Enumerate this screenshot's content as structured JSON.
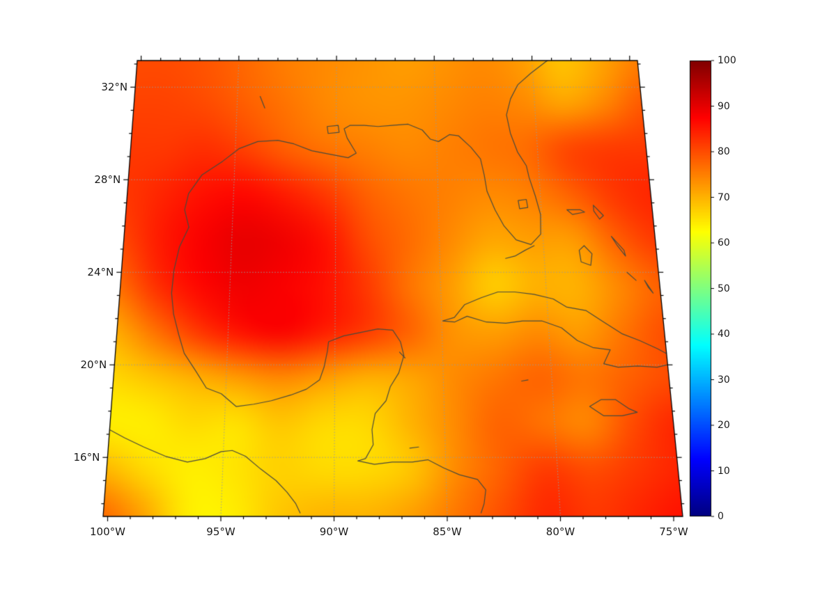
{
  "chart_data": {
    "type": "heatmap",
    "title": "",
    "projection": "conic-like map of Gulf of Mexico / Caribbean region",
    "value_range": [
      0,
      100
    ],
    "lat_ticks": [
      {
        "label": "32°N",
        "value": 32
      },
      {
        "label": "28°N",
        "value": 28
      },
      {
        "label": "24°N",
        "value": 24
      },
      {
        "label": "20°N",
        "value": 20
      },
      {
        "label": "16°N",
        "value": 16
      }
    ],
    "lon_ticks": [
      {
        "label": "100°W",
        "value": -100
      },
      {
        "label": "95°W",
        "value": -95
      },
      {
        "label": "90°W",
        "value": -90
      },
      {
        "label": "85°W",
        "value": -85
      },
      {
        "label": "80°W",
        "value": -80
      },
      {
        "label": "75°W",
        "value": -75
      }
    ],
    "graticule": {
      "lons": [
        -95,
        -90,
        -85,
        -80
      ],
      "lats": [
        16,
        20,
        24,
        28,
        32
      ]
    },
    "colorbar": {
      "min": 0,
      "max": 100,
      "ticks": [
        {
          "label": "100",
          "value": 100
        },
        {
          "label": "90",
          "value": 90
        },
        {
          "label": "80",
          "value": 80
        },
        {
          "label": "70",
          "value": 70
        },
        {
          "label": "60",
          "value": 60
        },
        {
          "label": "50",
          "value": 50
        },
        {
          "label": "40",
          "value": 40
        },
        {
          "label": "30",
          "value": 30
        },
        {
          "label": "20",
          "value": 20
        },
        {
          "label": "10",
          "value": 10
        },
        {
          "label": "0",
          "value": 0
        }
      ]
    },
    "colormap": {
      "name": "jet",
      "stops": [
        [
          0,
          "#000080"
        ],
        [
          0.125,
          "#0000ff"
        ],
        [
          0.375,
          "#00ffff"
        ],
        [
          0.625,
          "#ffff00"
        ],
        [
          0.875,
          "#ff0000"
        ],
        [
          1,
          "#800000"
        ]
      ]
    },
    "grid": {
      "lons": [
        -100.5,
        -98.5,
        -96.5,
        -94.5,
        -92.5,
        -90.5,
        -88.5,
        -86.5,
        -84.5,
        -82.5,
        -80.5,
        -78.5,
        -76.5,
        -74.5
      ],
      "lats": [
        33.3,
        31.3,
        29.3,
        27.4,
        25.4,
        23.4,
        21.4,
        19.4,
        17.5,
        15.5,
        13.5
      ],
      "values": [
        [
          80,
          80,
          79,
          77,
          75,
          74,
          73,
          72,
          73,
          74,
          72,
          68,
          71,
          75
        ],
        [
          81,
          81,
          80,
          78,
          76,
          74,
          73,
          73,
          74,
          75,
          74,
          71,
          74,
          79
        ],
        [
          82,
          82,
          83,
          81,
          78,
          76,
          75,
          74,
          75,
          76,
          77,
          81,
          82,
          82
        ],
        [
          82,
          84,
          86,
          87,
          85,
          82,
          78,
          76,
          75,
          74,
          75,
          78,
          82,
          84
        ],
        [
          80,
          85,
          88,
          90,
          89,
          86,
          80,
          77,
          74,
          71,
          72,
          72,
          78,
          82
        ],
        [
          76,
          83,
          87,
          89,
          88,
          86,
          82,
          76,
          72,
          67,
          70,
          70,
          74,
          78
        ],
        [
          70,
          76,
          82,
          86,
          88,
          85,
          82,
          78,
          73,
          72,
          74,
          72,
          76,
          80
        ],
        [
          66,
          68,
          70,
          72,
          74,
          72,
          70,
          71,
          74,
          76,
          78,
          76,
          78,
          80
        ],
        [
          64,
          64,
          66,
          65,
          68,
          66,
          66,
          70,
          74,
          78,
          76,
          74,
          80,
          84
        ],
        [
          70,
          66,
          64,
          65,
          67,
          66,
          66,
          68,
          74,
          78,
          82,
          80,
          82,
          84
        ],
        [
          78,
          72,
          64,
          64,
          68,
          70,
          70,
          72,
          76,
          80,
          84,
          82,
          84,
          86
        ]
      ]
    },
    "coastlines": [
      {
        "name": "us-gulf-atlantic-coast",
        "points": [
          [
            -97.1,
            25.95
          ],
          [
            -97.35,
            26.7
          ],
          [
            -97.2,
            27.4
          ],
          [
            -96.6,
            28.2
          ],
          [
            -95.6,
            28.8
          ],
          [
            -94.8,
            29.35
          ],
          [
            -93.9,
            29.65
          ],
          [
            -92.9,
            29.7
          ],
          [
            -92.1,
            29.55
          ],
          [
            -91.2,
            29.25
          ],
          [
            -90.3,
            29.1
          ],
          [
            -89.4,
            28.95
          ],
          [
            -89.0,
            29.15
          ],
          [
            -89.45,
            29.8
          ],
          [
            -89.6,
            30.2
          ],
          [
            -89.3,
            30.35
          ],
          [
            -88.6,
            30.35
          ],
          [
            -87.9,
            30.3
          ],
          [
            -87.2,
            30.35
          ],
          [
            -86.4,
            30.4
          ],
          [
            -85.7,
            30.15
          ],
          [
            -85.3,
            29.75
          ],
          [
            -84.9,
            29.65
          ],
          [
            -84.35,
            29.95
          ],
          [
            -83.9,
            29.9
          ],
          [
            -83.3,
            29.4
          ],
          [
            -82.85,
            28.9
          ],
          [
            -82.7,
            28.2
          ],
          [
            -82.6,
            27.5
          ],
          [
            -82.25,
            26.7
          ],
          [
            -81.85,
            26.0
          ],
          [
            -81.3,
            25.4
          ],
          [
            -80.6,
            25.2
          ],
          [
            -80.1,
            25.65
          ],
          [
            -80.05,
            26.5
          ],
          [
            -80.25,
            27.3
          ],
          [
            -80.5,
            28.1
          ],
          [
            -80.6,
            28.6
          ],
          [
            -81.0,
            29.2
          ],
          [
            -81.3,
            30.0
          ],
          [
            -81.45,
            30.8
          ],
          [
            -81.2,
            31.5
          ],
          [
            -80.8,
            32.1
          ],
          [
            -80.1,
            32.6
          ],
          [
            -79.3,
            33.1
          ],
          [
            -78.9,
            33.3
          ]
        ]
      },
      {
        "name": "mexico-gulf-yucatan-coast",
        "points": [
          [
            -97.1,
            25.95
          ],
          [
            -97.5,
            25.1
          ],
          [
            -97.7,
            24.1
          ],
          [
            -97.75,
            23.1
          ],
          [
            -97.6,
            22.2
          ],
          [
            -97.3,
            21.3
          ],
          [
            -97.0,
            20.5
          ],
          [
            -96.4,
            19.7
          ],
          [
            -95.9,
            19.0
          ],
          [
            -95.2,
            18.75
          ],
          [
            -94.5,
            18.2
          ],
          [
            -93.7,
            18.3
          ],
          [
            -92.9,
            18.45
          ],
          [
            -92.0,
            18.7
          ],
          [
            -91.3,
            18.95
          ],
          [
            -90.7,
            19.35
          ],
          [
            -90.5,
            19.9
          ],
          [
            -90.35,
            20.6
          ],
          [
            -90.3,
            21.0
          ],
          [
            -89.6,
            21.25
          ],
          [
            -88.8,
            21.4
          ],
          [
            -88.0,
            21.55
          ],
          [
            -87.3,
            21.5
          ],
          [
            -86.95,
            21.0
          ],
          [
            -86.8,
            20.4
          ],
          [
            -87.05,
            19.65
          ],
          [
            -87.45,
            19.05
          ],
          [
            -87.65,
            18.45
          ],
          [
            -88.15,
            17.9
          ],
          [
            -88.3,
            17.2
          ],
          [
            -88.25,
            16.55
          ],
          [
            -88.6,
            15.95
          ],
          [
            -88.95,
            15.85
          ],
          [
            -88.2,
            15.7
          ],
          [
            -87.4,
            15.8
          ],
          [
            -86.5,
            15.8
          ],
          [
            -85.8,
            15.9
          ],
          [
            -85.1,
            15.55
          ],
          [
            -84.4,
            15.25
          ],
          [
            -83.6,
            15.05
          ],
          [
            -83.25,
            14.6
          ],
          [
            -83.35,
            14.0
          ],
          [
            -83.5,
            13.6
          ]
        ]
      },
      {
        "name": "pacific-coast",
        "points": [
          [
            -100.3,
            17.25
          ],
          [
            -99.5,
            16.85
          ],
          [
            -98.6,
            16.45
          ],
          [
            -97.6,
            16.05
          ],
          [
            -96.6,
            15.8
          ],
          [
            -95.8,
            15.95
          ],
          [
            -95.1,
            16.25
          ],
          [
            -94.6,
            16.3
          ],
          [
            -94.0,
            16.05
          ],
          [
            -93.3,
            15.5
          ],
          [
            -92.6,
            15.0
          ],
          [
            -92.1,
            14.5
          ],
          [
            -91.7,
            14.0
          ],
          [
            -91.5,
            13.6
          ]
        ]
      },
      {
        "name": "cuba",
        "points": [
          [
            -84.95,
            21.9
          ],
          [
            -84.4,
            22.05
          ],
          [
            -83.9,
            22.6
          ],
          [
            -83.1,
            22.9
          ],
          [
            -82.3,
            23.15
          ],
          [
            -81.5,
            23.15
          ],
          [
            -80.6,
            23.05
          ],
          [
            -79.7,
            22.85
          ],
          [
            -79.1,
            22.5
          ],
          [
            -78.2,
            22.35
          ],
          [
            -77.4,
            21.85
          ],
          [
            -76.6,
            21.35
          ],
          [
            -75.8,
            21.05
          ],
          [
            -75.0,
            20.7
          ],
          [
            -74.25,
            20.3
          ],
          [
            -74.4,
            20.05
          ],
          [
            -75.1,
            19.9
          ],
          [
            -76.0,
            19.95
          ],
          [
            -76.9,
            19.9
          ],
          [
            -77.55,
            20.05
          ],
          [
            -77.2,
            20.65
          ],
          [
            -78.0,
            20.75
          ],
          [
            -78.7,
            21.05
          ],
          [
            -79.4,
            21.6
          ],
          [
            -80.3,
            21.9
          ],
          [
            -81.2,
            21.9
          ],
          [
            -82.0,
            21.8
          ],
          [
            -82.9,
            21.85
          ],
          [
            -83.8,
            22.1
          ],
          [
            -84.4,
            21.85
          ],
          [
            -84.95,
            21.9
          ]
        ]
      },
      {
        "name": "jamaica",
        "points": [
          [
            -78.35,
            18.2
          ],
          [
            -77.8,
            18.5
          ],
          [
            -77.15,
            18.5
          ],
          [
            -76.55,
            18.1
          ],
          [
            -76.2,
            17.95
          ],
          [
            -76.9,
            17.8
          ],
          [
            -77.75,
            17.8
          ],
          [
            -78.35,
            18.2
          ]
        ]
      },
      {
        "name": "hispaniola-west",
        "points": [
          [
            -74.6,
            19.75
          ],
          [
            -73.9,
            19.9
          ],
          [
            -73.15,
            19.85
          ],
          [
            -72.75,
            19.5
          ],
          [
            -73.35,
            19.1
          ],
          [
            -74.35,
            18.65
          ],
          [
            -74.45,
            18.35
          ],
          [
            -73.6,
            18.25
          ],
          [
            -72.9,
            18.45
          ],
          [
            -72.3,
            18.2
          ]
        ]
      },
      {
        "name": "grand-bahama",
        "points": [
          [
            -78.75,
            26.7
          ],
          [
            -78.1,
            26.7
          ],
          [
            -77.9,
            26.6
          ],
          [
            -78.5,
            26.5
          ],
          [
            -78.75,
            26.7
          ]
        ]
      },
      {
        "name": "abaco",
        "points": [
          [
            -77.45,
            26.9
          ],
          [
            -77.0,
            26.45
          ],
          [
            -77.2,
            26.3
          ],
          [
            -77.45,
            26.65
          ],
          [
            -77.45,
            26.9
          ]
        ]
      },
      {
        "name": "andros",
        "points": [
          [
            -78.05,
            25.15
          ],
          [
            -77.7,
            24.8
          ],
          [
            -77.8,
            24.3
          ],
          [
            -78.25,
            24.45
          ],
          [
            -78.3,
            24.95
          ],
          [
            -78.05,
            25.15
          ]
        ]
      },
      {
        "name": "eleuthera",
        "points": [
          [
            -76.7,
            25.55
          ],
          [
            -76.15,
            24.95
          ],
          [
            -76.1,
            24.7
          ],
          [
            -76.45,
            25.15
          ],
          [
            -76.7,
            25.55
          ]
        ]
      },
      {
        "name": "long-island-bahamas",
        "points": [
          [
            -75.3,
            23.65
          ],
          [
            -74.95,
            23.1
          ],
          [
            -75.15,
            23.35
          ],
          [
            -75.3,
            23.65
          ]
        ]
      },
      {
        "name": "exuma",
        "points": [
          [
            -76.1,
            24.0
          ],
          [
            -75.7,
            23.65
          ]
        ]
      },
      {
        "name": "florida-keys",
        "points": [
          [
            -80.45,
            25.15
          ],
          [
            -80.9,
            24.95
          ],
          [
            -81.4,
            24.7
          ],
          [
            -81.85,
            24.6
          ]
        ]
      },
      {
        "name": "lake-okeechobee",
        "points": [
          [
            -81.1,
            27.1
          ],
          [
            -80.7,
            27.15
          ],
          [
            -80.65,
            26.8
          ],
          [
            -81.05,
            26.75
          ],
          [
            -81.1,
            27.1
          ]
        ]
      },
      {
        "name": "lake-pontchartrain",
        "points": [
          [
            -90.45,
            30.3
          ],
          [
            -89.9,
            30.35
          ],
          [
            -89.85,
            30.05
          ],
          [
            -90.4,
            30.0
          ],
          [
            -90.45,
            30.3
          ]
        ]
      },
      {
        "name": "toledo-bend",
        "points": [
          [
            -93.85,
            31.6
          ],
          [
            -93.6,
            31.1
          ]
        ]
      },
      {
        "name": "cozumel",
        "points": [
          [
            -87.0,
            20.55
          ],
          [
            -86.75,
            20.3
          ]
        ]
      },
      {
        "name": "cayman",
        "points": [
          [
            -81.4,
            19.3
          ],
          [
            -81.1,
            19.35
          ]
        ]
      },
      {
        "name": "roatan",
        "points": [
          [
            -86.6,
            16.4
          ],
          [
            -86.2,
            16.45
          ]
        ]
      }
    ]
  }
}
